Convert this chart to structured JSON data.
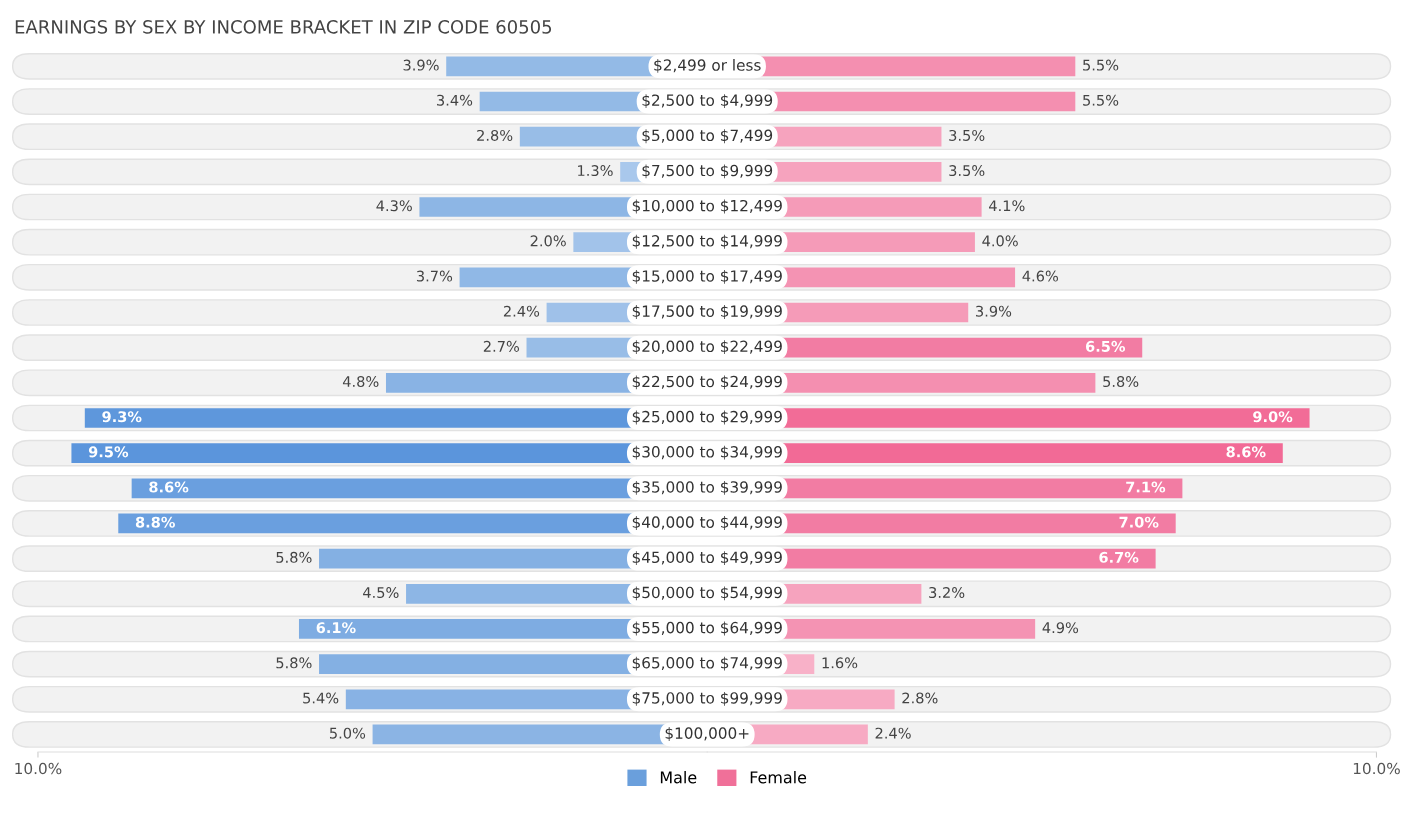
{
  "chart_data": [
    {
      "type": "bar",
      "orientation": "horizontal",
      "title": "EARNINGS BY SEX BY INCOME BRACKET IN ZIP CODE 60505",
      "categories": [
        "$2,499 or less",
        "$2,500 to $4,999",
        "$5,000 to $7,499",
        "$7,500 to $9,999",
        "$10,000 to $12,499",
        "$12,500 to $14,999",
        "$15,000 to $17,499",
        "$17,500 to $19,999",
        "$20,000 to $22,499",
        "$22,500 to $24,999",
        "$25,000 to $29,999",
        "$30,000 to $34,999",
        "$35,000 to $39,999",
        "$40,000 to $44,999",
        "$45,000 to $49,999",
        "$50,000 to $54,999",
        "$55,000 to $64,999",
        "$65,000 to $74,999",
        "$75,000 to $99,999",
        "$100,000+"
      ],
      "series": [
        {
          "name": "Male",
          "color": "#6a9fdc",
          "colors": [
            "#93bae6",
            "#93bae6",
            "#98bde7",
            "#a9c8ec",
            "#8db6e5",
            "#a2c3ea",
            "#90b8e6",
            "#9fc1e9",
            "#98bde7",
            "#89b3e4",
            "#5e97dc",
            "#5b95dc",
            "#6a9fdf",
            "#6a9fdf",
            "#84b0e3",
            "#8db6e5",
            "#7eace2",
            "#84b0e3",
            "#88b2e4",
            "#8bb4e4"
          ],
          "values": [
            3.9,
            3.4,
            2.8,
            1.3,
            4.3,
            2.0,
            3.7,
            2.4,
            2.7,
            4.8,
            9.3,
            9.5,
            8.6,
            8.8,
            5.8,
            4.5,
            6.1,
            5.8,
            5.4,
            5.0
          ],
          "value_labels": [
            "3.9%",
            "3.4%",
            "2.8%",
            "1.3%",
            "4.3%",
            "2.0%",
            "3.7%",
            "2.4%",
            "2.7%",
            "4.8%",
            "9.3%",
            "9.5%",
            "8.6%",
            "8.8%",
            "5.8%",
            "4.5%",
            "6.1%",
            "5.8%",
            "5.4%",
            "5.0%"
          ]
        }
      ],
      "xlim": [
        10,
        0
      ],
      "xticks": [
        {
          "value": 10,
          "label": "10.0%"
        }
      ],
      "tick_labels": "x",
      "grid": false,
      "legend": "bottom right"
    },
    {
      "type": "bar",
      "orientation": "horizontal",
      "categories": [
        null,
        null,
        null,
        null,
        null,
        null,
        null,
        null,
        null,
        null,
        null,
        null,
        null,
        null,
        null,
        null,
        null,
        null,
        null,
        null
      ],
      "series": [
        {
          "name": "Female",
          "color": "#f07099",
          "colors": [
            "#f48fb0",
            "#f48fb0",
            "#f6a3be",
            "#f6a3be",
            "#f59bb8",
            "#f59bb8",
            "#f493b3",
            "#f59bb8",
            "#f27ca3",
            "#f48fb0",
            "#f26c97",
            "#f26a96",
            "#f27ca3",
            "#f27ca3",
            "#f27ca3",
            "#f6a3be",
            "#f493b3",
            "#f8b1c8",
            "#f7aac3",
            "#f7aac3"
          ],
          "values": [
            5.5,
            5.5,
            3.5,
            3.5,
            4.1,
            4.0,
            4.6,
            3.9,
            6.5,
            5.8,
            9.0,
            8.6,
            7.1,
            7.0,
            6.7,
            3.2,
            4.9,
            1.6,
            2.8,
            2.4
          ],
          "value_labels": [
            "5.5%",
            "5.5%",
            "3.5%",
            "3.5%",
            "4.1%",
            "4.0%",
            "4.6%",
            "3.9%",
            "6.5%",
            "5.8%",
            "9.0%",
            "8.6%",
            "7.1%",
            "7.0%",
            "6.7%",
            "3.2%",
            "4.9%",
            "1.6%",
            "2.8%",
            "2.4%"
          ]
        }
      ],
      "xlim": [
        0,
        10
      ],
      "xticks": [
        {
          "value": 10,
          "label": "10.0%"
        }
      ],
      "tick_labels": "x",
      "grid": false,
      "legend": "bottom left"
    }
  ]
}
